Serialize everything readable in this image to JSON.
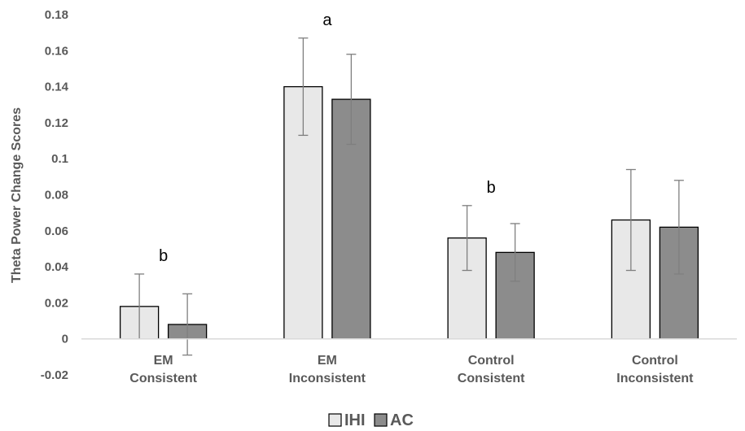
{
  "chart_data": {
    "type": "bar",
    "ylabel": "Theta Power Change Scores",
    "ylim": [
      -0.02,
      0.18
    ],
    "yticks": [
      "-0.02",
      "0",
      "0.02",
      "0.04",
      "0.06",
      "0.08",
      "0.1",
      "0.12",
      "0.14",
      "0.16",
      "0.18"
    ],
    "categories": [
      [
        "EM",
        "Consistent"
      ],
      [
        "EM",
        "Inconsistent"
      ],
      [
        "Control",
        "Consistent"
      ],
      [
        "Control",
        "Inconsistent"
      ]
    ],
    "series": [
      {
        "name": "IHI",
        "color": "#e8e8e8",
        "values": [
          0.018,
          0.14,
          0.056,
          0.066
        ],
        "errors": [
          0.018,
          0.027,
          0.018,
          0.028
        ]
      },
      {
        "name": "AC",
        "color": "#8c8c8c",
        "values": [
          0.008,
          0.133,
          0.048,
          0.062
        ],
        "errors": [
          0.017,
          0.025,
          0.016,
          0.026
        ]
      }
    ],
    "annotations": [
      "b",
      "a",
      "b",
      ""
    ],
    "grid": false,
    "legend_position": "bottom"
  }
}
